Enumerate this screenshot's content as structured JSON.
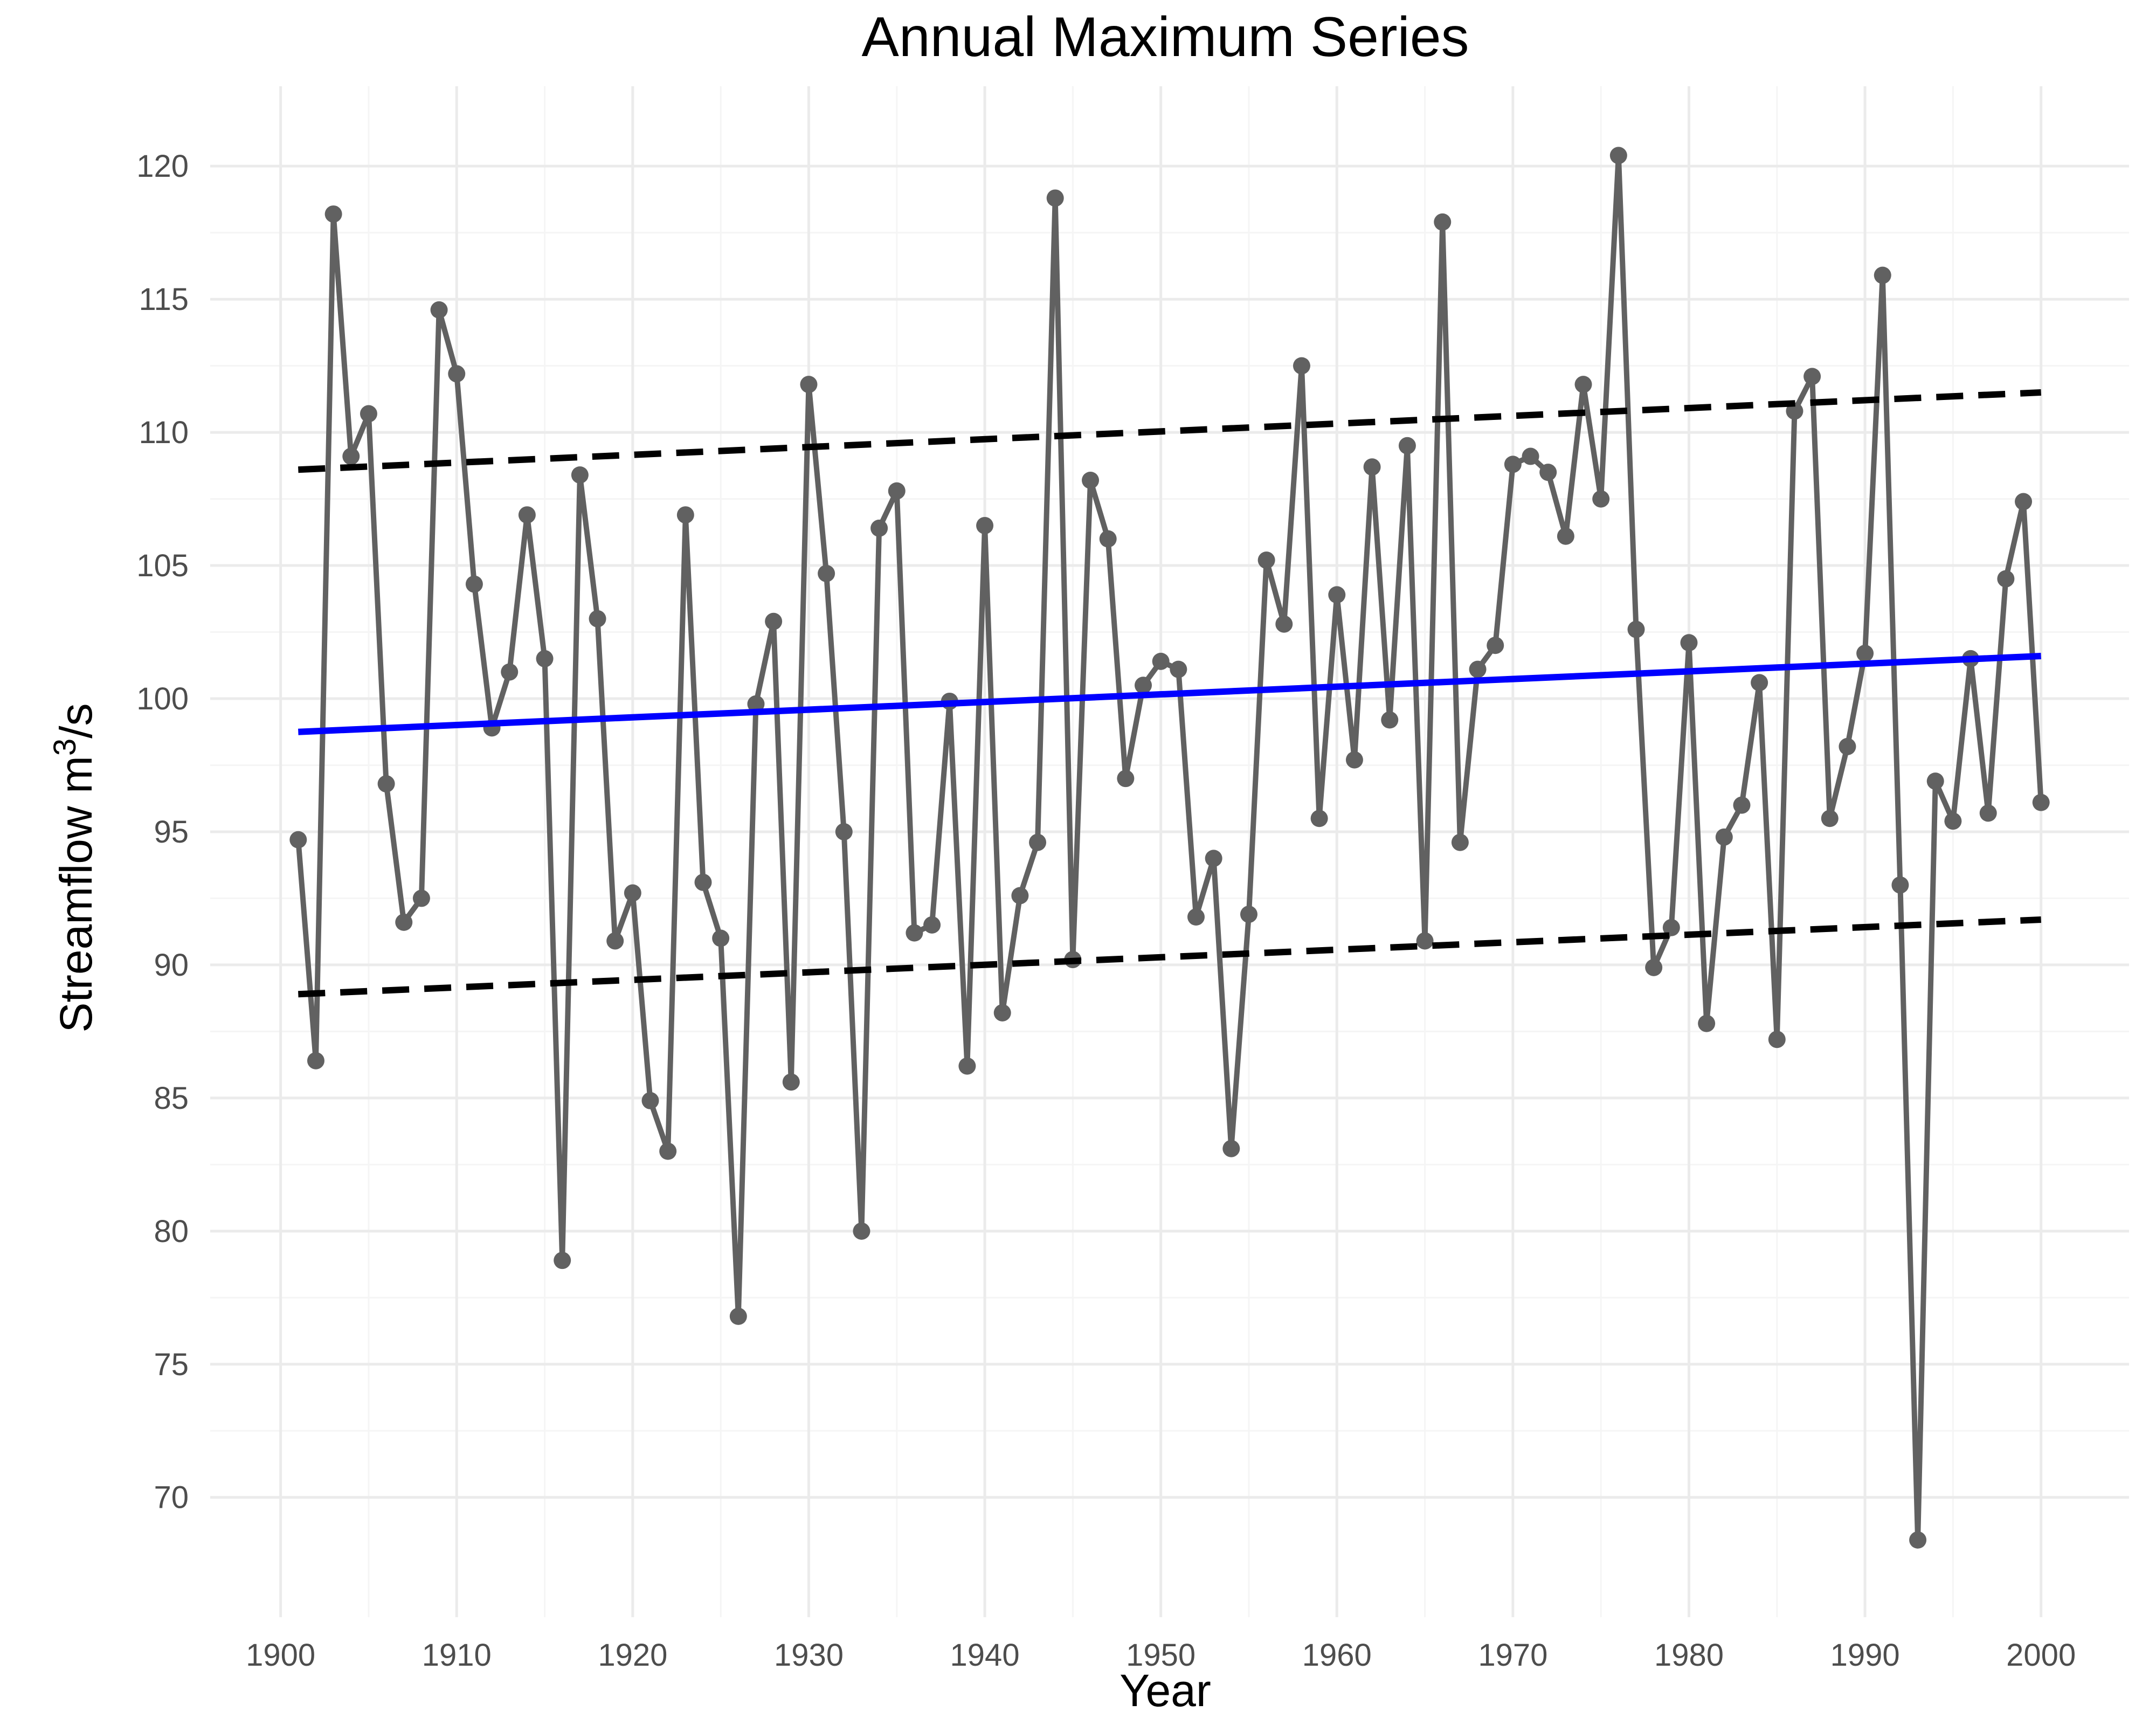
{
  "chart_data": {
    "type": "line",
    "title": "Annual Maximum Series",
    "xlabel": "Year",
    "ylabel": "Streamflow m³/s",
    "ylabel_parts": {
      "base": "Streamflow m",
      "sup": "3",
      "tail": "/s"
    },
    "xlim": [
      1896,
      2005
    ],
    "ylim": [
      65.5,
      123
    ],
    "x_ticks": [
      1900,
      1910,
      1920,
      1930,
      1940,
      1950,
      1960,
      1970,
      1980,
      1990,
      2000
    ],
    "y_ticks": [
      70,
      75,
      80,
      85,
      90,
      95,
      100,
      105,
      110,
      115,
      120
    ],
    "grid": true,
    "legend": "none",
    "series": [
      {
        "role": "observed",
        "color": "#616161",
        "markers": true,
        "x": [
          1901,
          1902,
          1903,
          1904,
          1905,
          1906,
          1907,
          1908,
          1909,
          1910,
          1911,
          1912,
          1913,
          1914,
          1915,
          1916,
          1917,
          1918,
          1919,
          1920,
          1921,
          1922,
          1923,
          1924,
          1925,
          1926,
          1927,
          1928,
          1929,
          1930,
          1931,
          1932,
          1933,
          1934,
          1935,
          1936,
          1937,
          1938,
          1939,
          1940,
          1941,
          1942,
          1943,
          1944,
          1945,
          1946,
          1947,
          1948,
          1949,
          1950,
          1951,
          1952,
          1953,
          1954,
          1955,
          1956,
          1957,
          1958,
          1959,
          1960,
          1961,
          1962,
          1963,
          1964,
          1965,
          1966,
          1967,
          1968,
          1969,
          1970,
          1971,
          1972,
          1973,
          1974,
          1975,
          1976,
          1977,
          1978,
          1979,
          1980,
          1981,
          1982,
          1983,
          1984,
          1985,
          1986,
          1987,
          1988,
          1989,
          1990,
          1991,
          1992,
          1993,
          1994,
          1995,
          1996,
          1997,
          1998,
          1999,
          2000
        ],
        "values": [
          94.7,
          86.4,
          118.2,
          109.1,
          110.7,
          96.8,
          91.6,
          92.5,
          114.6,
          112.2,
          104.3,
          98.9,
          101.0,
          106.9,
          101.5,
          78.9,
          108.4,
          103.0,
          90.9,
          92.7,
          84.9,
          83.0,
          106.9,
          93.1,
          91.0,
          76.8,
          99.8,
          102.9,
          85.6,
          111.8,
          104.7,
          95.0,
          80.0,
          106.4,
          107.8,
          91.2,
          91.5,
          99.9,
          86.2,
          106.5,
          88.2,
          92.6,
          94.6,
          118.8,
          90.2,
          108.2,
          106.0,
          97.0,
          100.5,
          101.4,
          101.1,
          91.8,
          94.0,
          83.1,
          91.9,
          105.2,
          102.8,
          112.5,
          95.5,
          103.9,
          97.7,
          108.7,
          99.2,
          109.5,
          90.9,
          117.9,
          94.6,
          101.1,
          102.0,
          108.8,
          109.1,
          108.5,
          106.1,
          111.8,
          107.5,
          120.4,
          102.6,
          89.9,
          91.4,
          102.1,
          87.8,
          94.8,
          96.0,
          100.6,
          87.2,
          110.8,
          112.1,
          95.5,
          98.2,
          101.7,
          115.9,
          93.0,
          68.4,
          96.9,
          95.4,
          101.5,
          95.7,
          104.5,
          107.4,
          96.1
        ]
      },
      {
        "role": "trend",
        "color": "#0000ff",
        "x": [
          1901,
          2000
        ],
        "values": [
          98.75,
          101.6
        ]
      },
      {
        "role": "upper bound",
        "color": "#000000",
        "dashed": true,
        "x": [
          1901,
          2000
        ],
        "values": [
          108.6,
          111.5
        ]
      },
      {
        "role": "lower bound",
        "color": "#000000",
        "dashed": true,
        "x": [
          1901,
          2000
        ],
        "values": [
          88.9,
          91.7
        ]
      }
    ]
  }
}
